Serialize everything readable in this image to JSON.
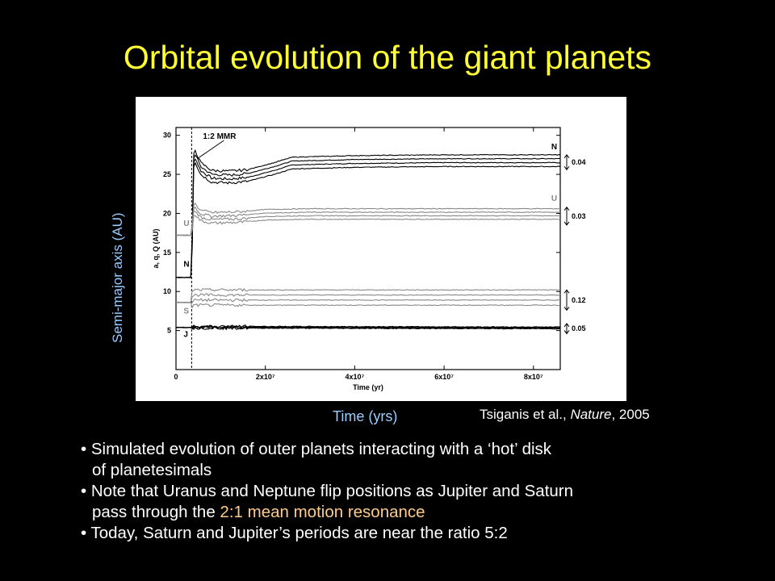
{
  "slide": {
    "title": "Orbital evolution of the giant planets",
    "ylabel": "Semi-major axis (AU)",
    "xlabel": "Time (yrs)",
    "citation": {
      "authors": "Tsiganis et al., ",
      "journal": "Nature",
      "year": ", 2005"
    },
    "bullets": [
      {
        "line1": "• Simulated evolution of outer planets interacting with a ‘hot’ disk",
        "line2": "of planetesimals"
      },
      {
        "line1": "• Note that Uranus and Neptune flip positions as Jupiter and Saturn",
        "line2_pre": "pass through the ",
        "line2_highlight": "2:1 mean motion resonance"
      },
      {
        "line1": "• Today, Saturn and Jupiter’s periods are near the ratio 5:2"
      }
    ],
    "colors": {
      "title": "#ffff33",
      "axis_label": "#99ccff",
      "highlight": "#ffcc88"
    }
  },
  "chart_data": {
    "type": "line",
    "xlabel": "Time (yr)",
    "ylabel": "a, q, Q (AU)",
    "xlim": [
      0,
      100000000
    ],
    "ylim": [
      0,
      31
    ],
    "x_ticks": [
      {
        "value": 0,
        "label": "0"
      },
      {
        "value": 20000000,
        "label": "2x10⁷"
      },
      {
        "value": 40000000,
        "label": "4x10⁷"
      },
      {
        "value": 60000000,
        "label": "6x10⁷"
      },
      {
        "value": 80000000,
        "label": "8x10⁷"
      }
    ],
    "y_ticks": [
      {
        "value": 5,
        "label": "5"
      },
      {
        "value": 10,
        "label": "10"
      },
      {
        "value": 15,
        "label": "15"
      },
      {
        "value": 20,
        "label": "20"
      },
      {
        "value": 25,
        "label": "25"
      },
      {
        "value": 30,
        "label": "30"
      }
    ],
    "resonance_time": 3500000,
    "resonance_label": "1:2 MMR",
    "series": [
      {
        "name": "N",
        "color": "#000000",
        "x": [
          0,
          3500000,
          4000000,
          5500000,
          8000000,
          12000000,
          16000000,
          22000000,
          26000000,
          40000000,
          60000000,
          80000000,
          86000000
        ],
        "a": [
          11.8,
          11.8,
          27.5,
          25.5,
          24.5,
          24.4,
          24.6,
          25.5,
          26.2,
          26.4,
          26.5,
          26.5,
          26.5
        ],
        "spread": 1.0
      },
      {
        "name": "U",
        "color": "#888888",
        "x": [
          0,
          3500000,
          4000000,
          5500000,
          8000000,
          14000000,
          20000000,
          30000000,
          50000000,
          86000000
        ],
        "a": [
          17.2,
          17.2,
          20.5,
          19.5,
          19.2,
          19.3,
          19.6,
          19.7,
          19.7,
          19.7
        ],
        "spread": 0.9
      },
      {
        "name": "S",
        "color": "#888888",
        "x": [
          0,
          3500000,
          4000000,
          6000000,
          86000000
        ],
        "a": [
          8.6,
          8.6,
          8.9,
          8.9,
          8.9
        ],
        "spread": 1.3
      },
      {
        "name": "J",
        "color": "#000000",
        "x": [
          0,
          86000000
        ],
        "a": [
          5.4,
          5.3
        ],
        "spread": 0.15
      }
    ],
    "annotations": [
      {
        "label": "N",
        "x": 84000000,
        "y": 28.2
      },
      {
        "label": "U",
        "x": 84000000,
        "y": 21.6
      },
      {
        "label": "U",
        "x": 1700000,
        "y": 18.4
      },
      {
        "label": "N",
        "x": 1700000,
        "y": 13.2
      },
      {
        "label": "S",
        "x": 1700000,
        "y": 7.2
      },
      {
        "label": "J",
        "x": 1700000,
        "y": 4.2
      }
    ],
    "eccentricity_bars": [
      {
        "planet": "N",
        "label": "0.04",
        "low": 25.6,
        "high": 27.5
      },
      {
        "planet": "U",
        "label": "0.03",
        "low": 18.5,
        "high": 20.8
      },
      {
        "planet": "S",
        "label": "0.12",
        "low": 7.6,
        "high": 10.2
      },
      {
        "planet": "J",
        "label": "0.05",
        "low": 4.6,
        "high": 5.9
      }
    ]
  }
}
